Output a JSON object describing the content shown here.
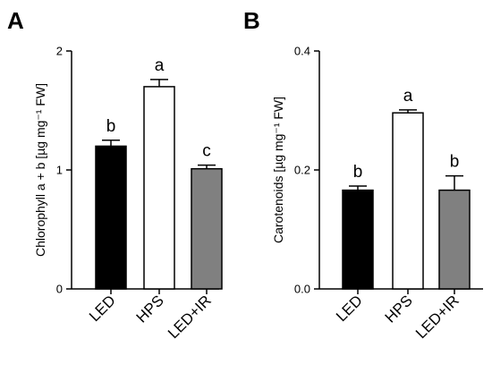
{
  "chart_data": [
    {
      "type": "bar",
      "panel": "A",
      "categories": [
        "LED",
        "HPS",
        "LED+IR"
      ],
      "values": [
        1.2,
        1.7,
        1.01
      ],
      "errors": [
        0.05,
        0.06,
        0.03
      ],
      "significance": [
        "b",
        "a",
        "c"
      ],
      "colors": [
        "#000000",
        "#ffffff",
        "#808080"
      ],
      "ylabel": "Chlorophyll a + b [µg mg⁻¹ FW]",
      "ylim": [
        0,
        2
      ],
      "yticks": [
        0,
        1,
        2
      ],
      "ytick_labels": [
        "0",
        "1",
        "2"
      ],
      "grid": false,
      "legend": "none"
    },
    {
      "type": "bar",
      "panel": "B",
      "categories": [
        "LED",
        "HPS",
        "LED+IR"
      ],
      "values": [
        0.166,
        0.296,
        0.166
      ],
      "errors": [
        0.007,
        0.005,
        0.024
      ],
      "significance": [
        "b",
        "a",
        "b"
      ],
      "colors": [
        "#000000",
        "#ffffff",
        "#808080"
      ],
      "ylabel": "Carotenoids [µg mg⁻¹ FW]",
      "ylim": [
        0,
        0.4
      ],
      "yticks": [
        0,
        0.2,
        0.4
      ],
      "ytick_labels": [
        "0.0",
        "0.2",
        "0.4"
      ],
      "grid": false,
      "legend": "none"
    }
  ]
}
